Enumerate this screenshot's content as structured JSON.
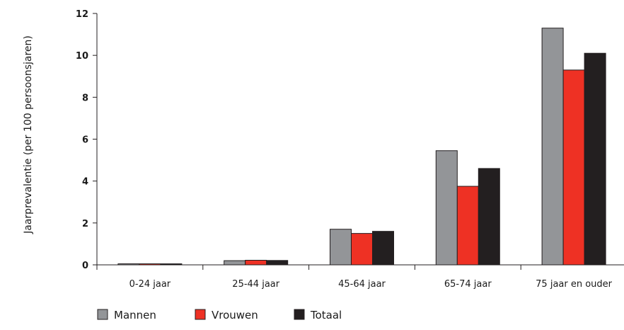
{
  "chart_data": {
    "type": "bar",
    "title": "",
    "xlabel": "",
    "ylabel": "Jaarprevalentie (per 100 persoonsjaren)",
    "ylim": [
      0,
      12
    ],
    "yticks": [
      0,
      2,
      4,
      6,
      8,
      10,
      12
    ],
    "grid": false,
    "legend_position": "bottom-left",
    "categories": [
      "0-24 jaar",
      "25-44 jaar",
      "45-64 jaar",
      "65-74 jaar",
      "75 jaar en ouder"
    ],
    "series": [
      {
        "name": "Mannen",
        "color": "#939598",
        "values": [
          0.05,
          0.2,
          1.7,
          5.45,
          11.3
        ]
      },
      {
        "name": "Vrouwen",
        "color": "#ee3124",
        "values": [
          0.05,
          0.22,
          1.5,
          3.75,
          9.3
        ]
      },
      {
        "name": "Totaal",
        "color": "#231f20",
        "values": [
          0.05,
          0.21,
          1.6,
          4.6,
          10.1
        ]
      }
    ]
  }
}
